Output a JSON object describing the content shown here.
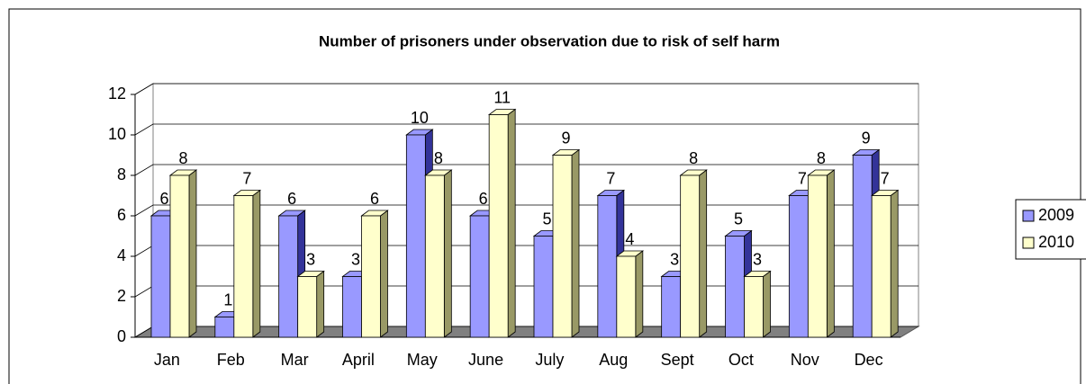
{
  "chart_data": {
    "type": "bar3d",
    "title": "Number of prisoners under observation due to risk of self harm",
    "categories": [
      "Jan",
      "Feb",
      "Mar",
      "April",
      "May",
      "June",
      "July",
      "Aug",
      "Sept",
      "Oct",
      "Nov",
      "Dec"
    ],
    "series": [
      {
        "name": "2009",
        "color": "#9999ff",
        "side": "#333399",
        "values": [
          6,
          1,
          6,
          3,
          10,
          6,
          5,
          7,
          3,
          5,
          7,
          9
        ]
      },
      {
        "name": "2010",
        "color": "#ffffcc",
        "side": "#999966",
        "values": [
          8,
          7,
          3,
          6,
          8,
          11,
          9,
          4,
          8,
          3,
          8,
          7
        ]
      }
    ],
    "ylim": [
      0,
      12
    ],
    "yticks": [
      0,
      2,
      4,
      6,
      8,
      10,
      12
    ],
    "grid": true,
    "legend": "right"
  }
}
